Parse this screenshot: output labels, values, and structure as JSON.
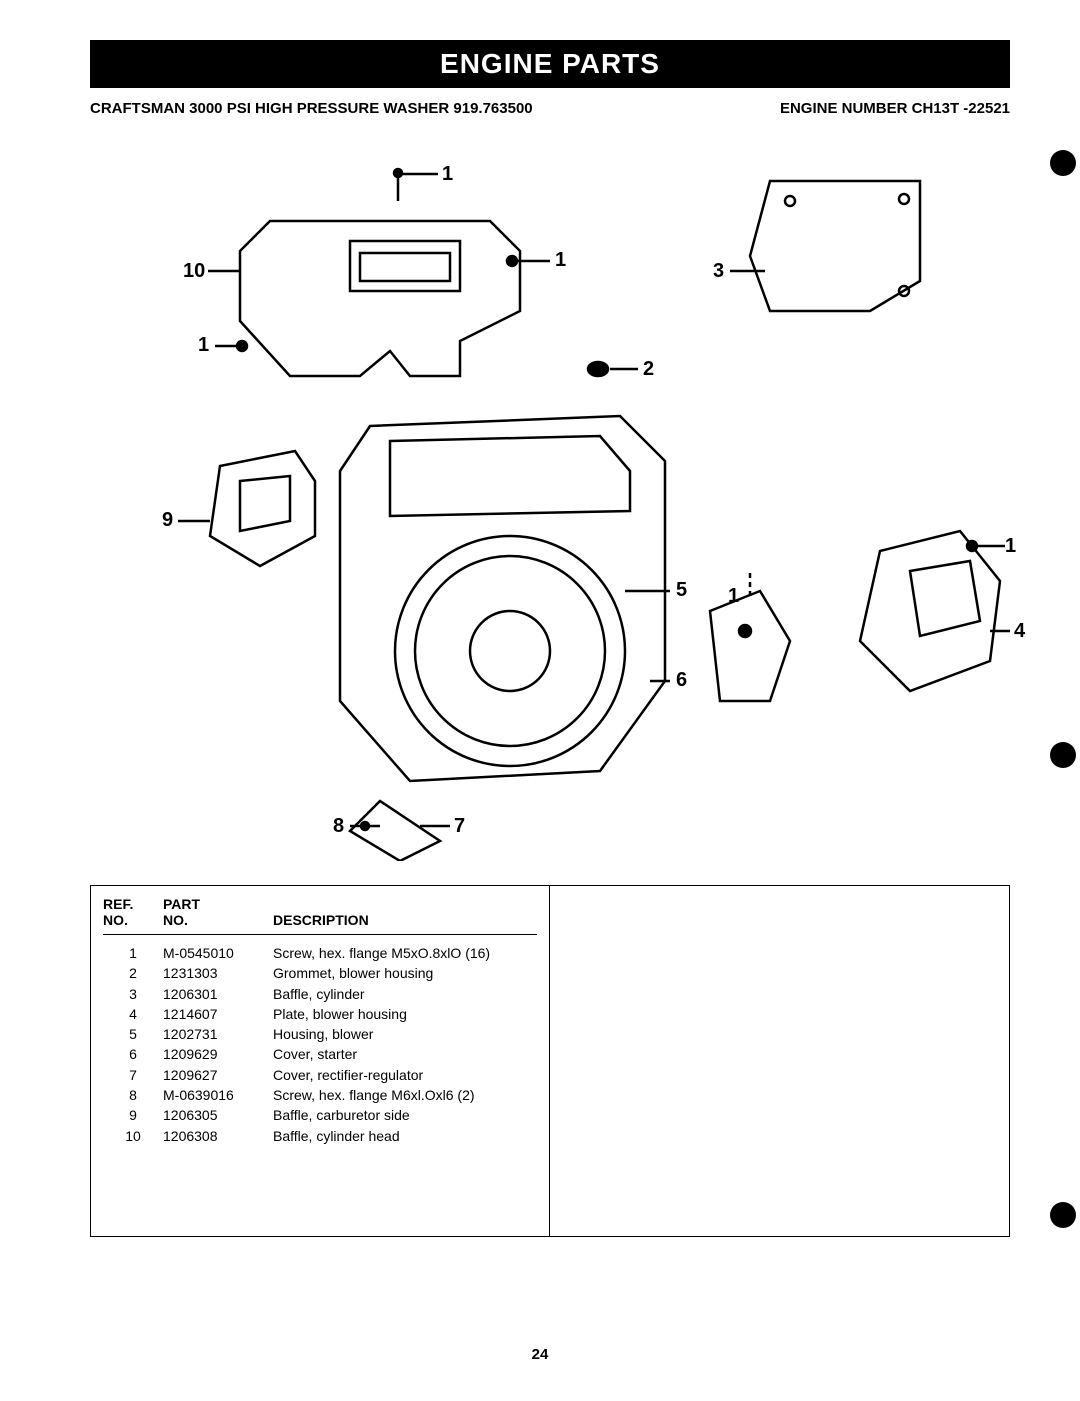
{
  "header": {
    "title": "ENGINE PARTS",
    "product": "CRAFTSMAN 3000 PSI HIGH PRESSURE WASHER 919.763500",
    "engine": "ENGINE NUMBER CH13T -22521"
  },
  "diagram": {
    "labels": {
      "l1a": "1",
      "l1b": "1",
      "l1c": "1",
      "l1d": "1",
      "l1e": "1",
      "l2": "2",
      "l3": "3",
      "l4": "4",
      "l5": "5",
      "l6": "6",
      "l7": "7",
      "l8": "8",
      "l9": "9",
      "l10": "10"
    }
  },
  "table": {
    "headers": {
      "ref1": "REF.",
      "ref2": "NO.",
      "part1": "PART",
      "part2": "NO.",
      "desc": "DESCRIPTION"
    },
    "rows": [
      {
        "ref": "1",
        "part": "M-0545010",
        "desc": "Screw, hex. flange M5xO.8xlO (16)"
      },
      {
        "ref": "2",
        "part": "1231303",
        "desc": "Grommet, blower housing"
      },
      {
        "ref": "3",
        "part": "1206301",
        "desc": "Baffle, cylinder"
      },
      {
        "ref": "4",
        "part": "1214607",
        "desc": "Plate, blower housing"
      },
      {
        "ref": "5",
        "part": "1202731",
        "desc": "Housing, blower"
      },
      {
        "ref": "6",
        "part": "1209629",
        "desc": "Cover, starter"
      },
      {
        "ref": "7",
        "part": "1209627",
        "desc": "Cover, rectifier-regulator"
      },
      {
        "ref": "8",
        "part": "M-0639016",
        "desc": "Screw, hex. flange M6xl.Oxl6  (2)"
      },
      {
        "ref": "9",
        "part": "1206305",
        "desc": "Baffle, carburetor side"
      },
      {
        "ref": "10",
        "part": "1206308",
        "desc": "Baffle, cylinder head"
      }
    ]
  },
  "page_number": "24"
}
